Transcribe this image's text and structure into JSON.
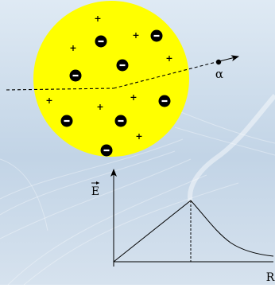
{
  "colors": {
    "background_top": "#dfeaf4",
    "background_mid": "#c2d4e6",
    "background_bottom": "#d6e2ee",
    "atom": "#ffff00",
    "electron": "#000000",
    "charge_text": "#000000",
    "axis": "#000000"
  },
  "atom_model": {
    "label": "Thomson (plum pudding) atom with alpha particle path",
    "electron_symbol": "−",
    "proton_symbol": "+",
    "particle_label": "α"
  },
  "field_plot": {
    "y_axis_label": "E",
    "x_axis_label": "R",
    "curve_shape": "linear rise inside the sphere, 1/R^2 decay outside"
  }
}
